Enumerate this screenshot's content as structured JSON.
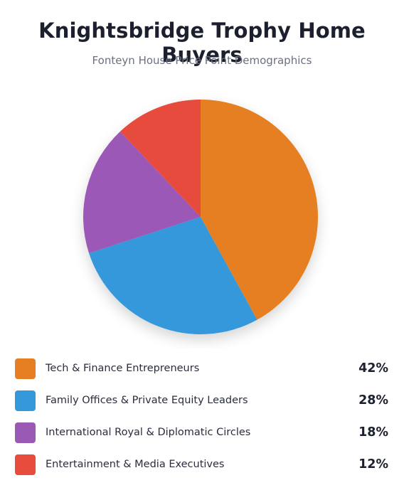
{
  "chart_data": {
    "type": "pie",
    "title": "Knightsbridge Trophy Home Buyers",
    "subtitle": "Fonteyn House Price Point Demographics",
    "categories": [
      "Tech & Finance Entrepreneurs",
      "Family Offices & Private Equity Leaders",
      "International Royal & Diplomatic Circles",
      "Entertainment & Media Executives"
    ],
    "values": [
      42,
      28,
      18,
      12
    ],
    "value_labels": [
      "42%",
      "28%",
      "18%",
      "12%"
    ],
    "colors": [
      "#e67e22",
      "#3498db",
      "#9b59b6",
      "#e74c3c"
    ],
    "legend_position": "bottom"
  }
}
